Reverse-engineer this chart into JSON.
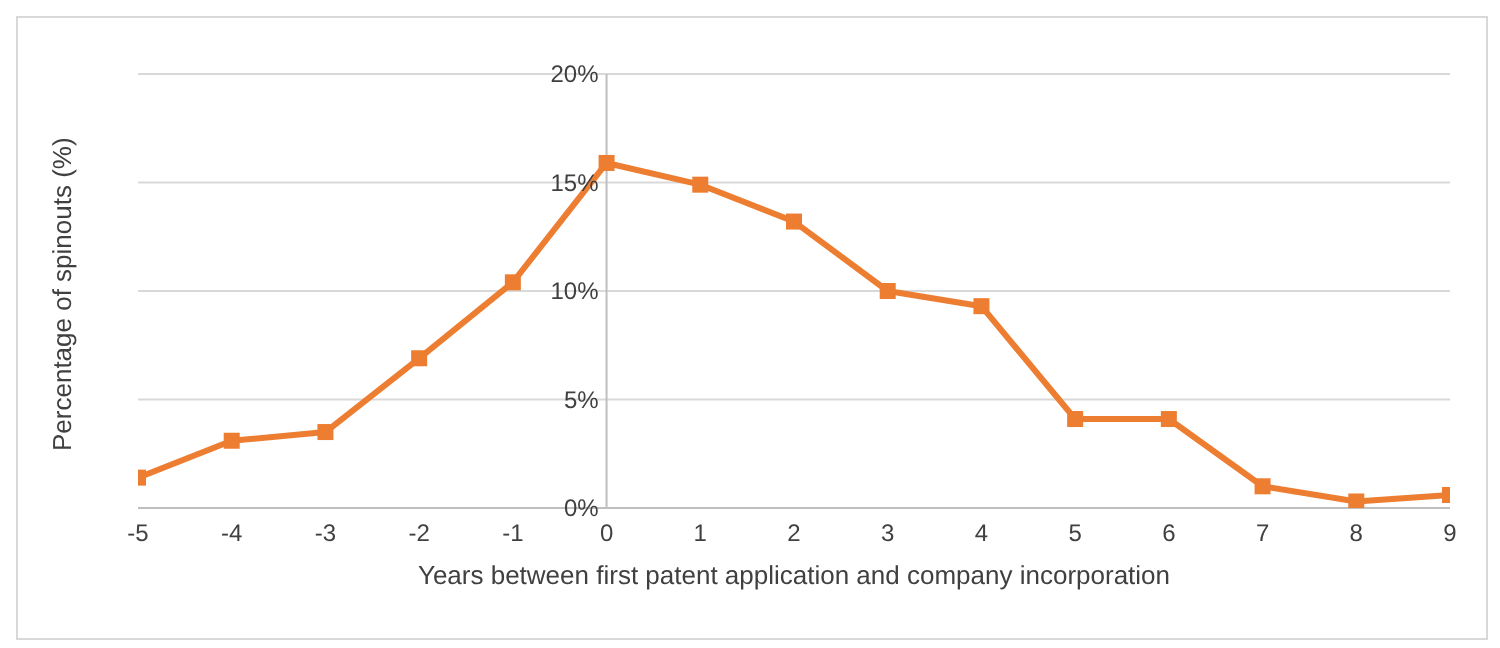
{
  "chart_data": {
    "type": "line",
    "xlabel": "Years between first patent application and company incorporation",
    "ylabel": "Percentage of spinouts (%)",
    "x": [
      -5,
      -4,
      -3,
      -2,
      -1,
      0,
      1,
      2,
      3,
      4,
      5,
      6,
      7,
      8,
      9
    ],
    "series": [
      {
        "color": "#ed7d31",
        "values": [
          1.4,
          3.1,
          3.5,
          6.9,
          10.4,
          15.9,
          14.9,
          13.2,
          10.0,
          9.3,
          4.1,
          4.1,
          1.0,
          0.3,
          0.6
        ]
      }
    ],
    "xlim": [
      -5,
      9
    ],
    "xticks": [
      -5,
      -4,
      -3,
      -2,
      -1,
      0,
      1,
      2,
      3,
      4,
      5,
      6,
      7,
      8,
      9
    ],
    "ylim": [
      0,
      20
    ],
    "yticks": [
      {
        "value": 0,
        "label": "0%"
      },
      {
        "value": 5,
        "label": "5%"
      },
      {
        "value": 10,
        "label": "10%"
      },
      {
        "value": 15,
        "label": "15%"
      },
      {
        "value": 20,
        "label": "20%"
      }
    ],
    "grid": "y",
    "legend": false,
    "marker": "square",
    "line_style": "solid"
  }
}
